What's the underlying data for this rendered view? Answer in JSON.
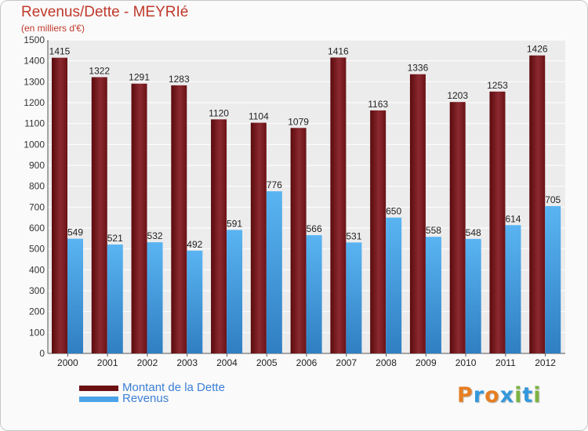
{
  "header": {
    "title": "Revenus/Dette - MEYRIé",
    "subtitle": "(en milliers d'€)"
  },
  "legend": {
    "items": [
      {
        "label": "Montant de la Dette",
        "color": "#6b0f12"
      },
      {
        "label": "Revenus",
        "color": "#4aa3e8"
      }
    ]
  },
  "logo": {
    "text": "Proxiti",
    "letters": [
      "P",
      "r",
      "o",
      "x",
      "i",
      "t",
      "i"
    ],
    "colors": [
      "#e67e22",
      "#3498db",
      "#e67e22",
      "#3498db",
      "#7cb342",
      "#3498db",
      "#7cb342"
    ]
  },
  "chart_data": {
    "type": "bar",
    "title": "Revenus/Dette - MEYRIé",
    "subtitle": "(en milliers d'€)",
    "categories": [
      "2000",
      "2001",
      "2002",
      "2003",
      "2004",
      "2005",
      "2006",
      "2007",
      "2008",
      "2009",
      "2010",
      "2011",
      "2012"
    ],
    "series": [
      {
        "name": "Montant de la Dette",
        "color": "#6b0f12",
        "values": [
          1415,
          1322,
          1291,
          1283,
          1120,
          1104,
          1079,
          1416,
          1163,
          1336,
          1203,
          1253,
          1426
        ]
      },
      {
        "name": "Revenus",
        "color": "#4aa3e8",
        "values": [
          549,
          521,
          532,
          492,
          591,
          776,
          566,
          531,
          650,
          558,
          548,
          614,
          705
        ]
      }
    ],
    "ylim": [
      0,
      1500
    ],
    "yticks": [
      0,
      100,
      200,
      300,
      400,
      500,
      600,
      700,
      800,
      900,
      1000,
      1100,
      1200,
      1300,
      1400,
      1500
    ],
    "grid": true,
    "legend_position": "bottom-left"
  }
}
